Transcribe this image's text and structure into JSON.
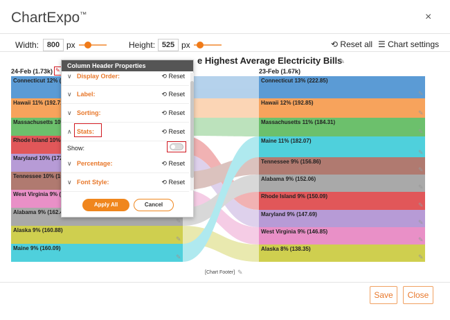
{
  "app": {
    "brand": "ChartExpo",
    "trademark": "™",
    "close_glyph": "×"
  },
  "toolbar": {
    "width_label": "Width:",
    "width_value": "800",
    "width_unit": "px",
    "height_label": "Height:",
    "height_value": "525",
    "height_unit": "px",
    "reset_all": "Reset all",
    "chart_settings": "Chart settings"
  },
  "chart": {
    "title": "e Highest Average Electricity Bills",
    "left_label": "24-Feb (1.73k)",
    "right_label": "23-Feb (1.67k)",
    "footer": "[Chart Footer]",
    "left_bars": [
      {
        "label": "Connecticut 12% (2",
        "color": "#5b9bd5"
      },
      {
        "label": "Hawaii 11% (192.71",
        "color": "#f7a35c"
      },
      {
        "label": "Massachusetts 10%",
        "color": "#6cc06c"
      },
      {
        "label": "Rhode Island 10% (",
        "color": "#e15759"
      },
      {
        "label": "Maryland 10% (172",
        "color": "#b79bd6"
      },
      {
        "label": "Tennessee 10% (16",
        "color": "#b07a70"
      },
      {
        "label": "West Virginia 9% (",
        "color": "#e990c7"
      },
      {
        "label": "Alabama 9% (162.48)",
        "color": "#a9a9a9"
      },
      {
        "label": "Alaska 9% (160.88)",
        "color": "#cfcf4f"
      },
      {
        "label": "Maine 9% (160.09)",
        "color": "#4fd0dc"
      }
    ],
    "right_bars": [
      {
        "label": "Connecticut 13% (222.85)",
        "color": "#5b9bd5"
      },
      {
        "label": "Hawaii 12% (192.85)",
        "color": "#f7a35c"
      },
      {
        "label": "Massachusetts 11% (184.31)",
        "color": "#6cc06c"
      },
      {
        "label": "Maine 11% (182.07)",
        "color": "#4fd0dc"
      },
      {
        "label": "Tennessee 9% (156.86)",
        "color": "#b07a70"
      },
      {
        "label": "Alabama 9% (152.06)",
        "color": "#a9a9a9"
      },
      {
        "label": "Rhode Island 9% (150.09)",
        "color": "#e15759"
      },
      {
        "label": "Maryland 9% (147.69)",
        "color": "#b79bd6"
      },
      {
        "label": "West Virginia 9% (146.85)",
        "color": "#e990c7"
      },
      {
        "label": "Alaska 8% (138.35)",
        "color": "#cfcf4f"
      }
    ]
  },
  "panel": {
    "title": "Column Header Properties",
    "rows": [
      {
        "name": "Display Order:",
        "reset": "Reset",
        "chevron": "∨"
      },
      {
        "name": "Label:",
        "reset": "Reset",
        "chevron": "∨"
      },
      {
        "name": "Sorting:",
        "reset": "Reset",
        "chevron": "∨"
      },
      {
        "name": "Stats:",
        "reset": "Reset",
        "chevron": "∧"
      },
      {
        "name": "Percentage:",
        "reset": "Reset",
        "chevron": "∨"
      },
      {
        "name": "Font Style:",
        "reset": "Reset",
        "chevron": "∨"
      }
    ],
    "show_label": "Show:",
    "apply": "Apply All",
    "cancel": "Cancel"
  },
  "footer": {
    "save": "Save",
    "close": "Close"
  }
}
